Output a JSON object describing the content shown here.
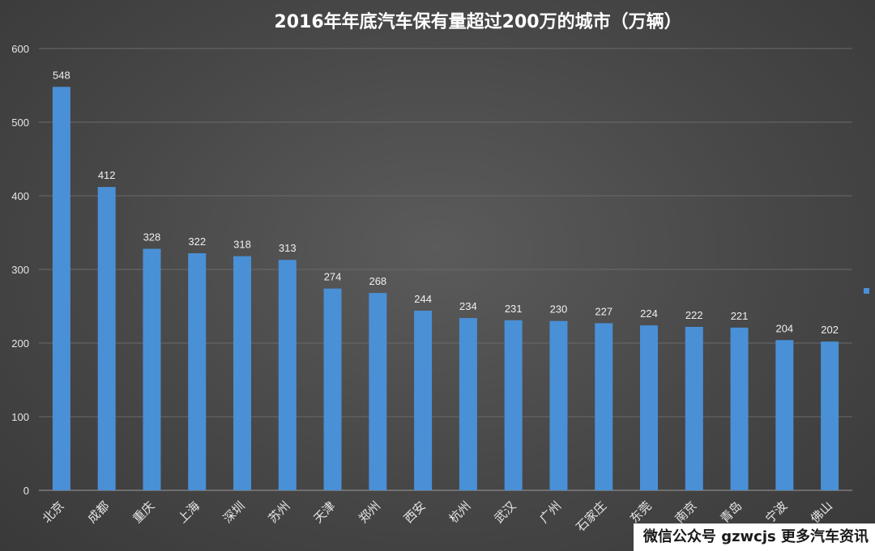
{
  "chart_data": {
    "type": "bar",
    "title": "2016年年底汽车保有量超过200万的城市（万辆）",
    "categories": [
      "北京",
      "成都",
      "重庆",
      "上海",
      "深圳",
      "苏州",
      "天津",
      "郑州",
      "西安",
      "杭州",
      "武汉",
      "广州",
      "石家庄",
      "东莞",
      "南京",
      "青岛",
      "宁波",
      "佛山"
    ],
    "values": [
      548,
      412,
      328,
      322,
      318,
      313,
      274,
      268,
      244,
      234,
      231,
      230,
      227,
      224,
      222,
      221,
      204,
      202
    ],
    "ylim": [
      0,
      600
    ],
    "yticks": [
      0,
      100,
      200,
      300,
      400,
      500,
      600
    ],
    "grid": true,
    "bar_color": "#4a90d6",
    "legend_placement": "right"
  },
  "watermark": "微信公众号 gzwcjs 更多汽车资讯"
}
